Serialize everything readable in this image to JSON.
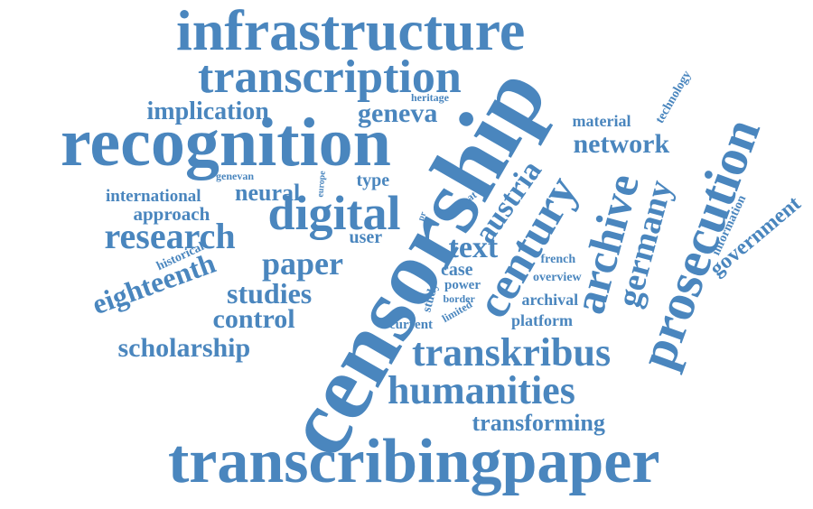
{
  "word_cloud": {
    "color": "#4a86be",
    "words": [
      {
        "text": "infrastructure",
        "orientation": "horizontal"
      },
      {
        "text": "transcription",
        "orientation": "horizontal"
      },
      {
        "text": "recognition",
        "orientation": "horizontal"
      },
      {
        "text": "censorship",
        "orientation": "rotated"
      },
      {
        "text": "implication",
        "orientation": "horizontal"
      },
      {
        "text": "geneva",
        "orientation": "horizontal"
      },
      {
        "text": "heritage",
        "orientation": "horizontal"
      },
      {
        "text": "material",
        "orientation": "horizontal"
      },
      {
        "text": "technology",
        "orientation": "rotated"
      },
      {
        "text": "network",
        "orientation": "horizontal"
      },
      {
        "text": "genevan",
        "orientation": "horizontal"
      },
      {
        "text": "europe",
        "orientation": "rotated"
      },
      {
        "text": "type",
        "orientation": "horizontal"
      },
      {
        "text": "international",
        "orientation": "horizontal"
      },
      {
        "text": "neural",
        "orientation": "horizontal"
      },
      {
        "text": "approach",
        "orientation": "horizontal"
      },
      {
        "text": "digital",
        "orientation": "horizontal"
      },
      {
        "text": "research",
        "orientation": "horizontal"
      },
      {
        "text": "great",
        "orientation": "rotated"
      },
      {
        "text": "pr",
        "orientation": "rotated"
      },
      {
        "text": "austria",
        "orientation": "rotated"
      },
      {
        "text": "century",
        "orientation": "rotated"
      },
      {
        "text": "archive",
        "orientation": "rotated"
      },
      {
        "text": "germany",
        "orientation": "rotated"
      },
      {
        "text": "prosecution",
        "orientation": "rotated"
      },
      {
        "text": "information",
        "orientation": "rotated"
      },
      {
        "text": "government",
        "orientation": "rotated"
      },
      {
        "text": "user",
        "orientation": "horizontal"
      },
      {
        "text": "text",
        "orientation": "horizontal"
      },
      {
        "text": "historical",
        "orientation": "rotated"
      },
      {
        "text": "paper",
        "orientation": "horizontal"
      },
      {
        "text": "eighteenth",
        "orientation": "rotated"
      },
      {
        "text": "case",
        "orientation": "horizontal"
      },
      {
        "text": "french",
        "orientation": "horizontal"
      },
      {
        "text": "overview",
        "orientation": "horizontal"
      },
      {
        "text": "studies",
        "orientation": "horizontal"
      },
      {
        "text": "study",
        "orientation": "rotated"
      },
      {
        "text": "power",
        "orientation": "horizontal"
      },
      {
        "text": "border",
        "orientation": "horizontal"
      },
      {
        "text": "limited",
        "orientation": "rotated"
      },
      {
        "text": "archival",
        "orientation": "horizontal"
      },
      {
        "text": "control",
        "orientation": "horizontal"
      },
      {
        "text": "current",
        "orientation": "horizontal"
      },
      {
        "text": "platform",
        "orientation": "horizontal"
      },
      {
        "text": "scholarship",
        "orientation": "horizontal"
      },
      {
        "text": "transkribus",
        "orientation": "horizontal"
      },
      {
        "text": "humanities",
        "orientation": "horizontal"
      },
      {
        "text": "transforming",
        "orientation": "horizontal"
      },
      {
        "text": "transcribingpaper",
        "orientation": "horizontal"
      }
    ]
  }
}
